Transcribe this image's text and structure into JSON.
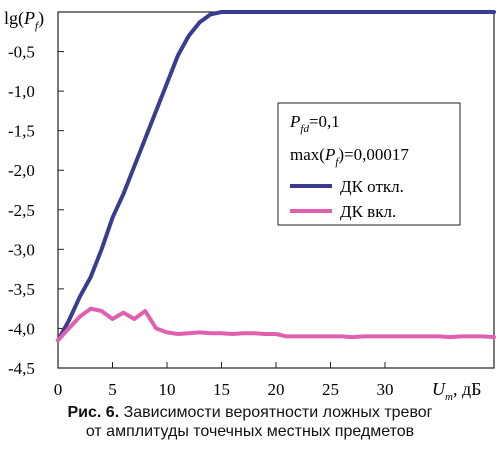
{
  "caption": {
    "label": "Рис. 6.",
    "line1": "Зависимости вероятности ложных тревог",
    "line2": "от амплитуды точечных местных предметов"
  },
  "chart_data": {
    "type": "line",
    "ylabel": {
      "base": "lg(",
      "var": "P",
      "sub": "f",
      "close": ")"
    },
    "xlabel": {
      "var": "U",
      "sub": "m",
      "suffix": ", дБ"
    },
    "xlim": [
      0,
      40
    ],
    "ylim": [
      -4.5,
      0
    ],
    "x_ticks": [
      "0",
      "5",
      "10",
      "15",
      "20",
      "25",
      "30"
    ],
    "y_ticks": [
      "-0,5",
      "-1,0",
      "-1,5",
      "-2,0",
      "-2,5",
      "-3,0",
      "-3,5",
      "-4,0",
      "-4,5"
    ],
    "grid": false,
    "legend": {
      "position": "right",
      "line1": {
        "var": "P",
        "sub": "fd",
        "value": "=0,1"
      },
      "line2": {
        "prefix": "max(",
        "var": "P",
        "sub": "f",
        "value": ")=0,00017"
      }
    },
    "series": [
      {
        "name": "ДК откл.",
        "color": "#3a3d8f",
        "x": [
          0,
          1,
          2,
          3,
          4,
          5,
          6,
          7,
          8,
          9,
          10,
          11,
          12,
          13,
          14,
          15,
          16,
          17,
          18,
          20,
          25,
          30,
          35,
          39,
          40
        ],
        "y": [
          -4.15,
          -3.9,
          -3.6,
          -3.35,
          -3.0,
          -2.6,
          -2.3,
          -1.95,
          -1.6,
          -1.25,
          -0.9,
          -0.55,
          -0.3,
          -0.13,
          -0.03,
          0.0,
          0.0,
          0.0,
          0.0,
          0.0,
          0.0,
          0.0,
          0.0,
          0.0,
          0.0
        ]
      },
      {
        "name": "ДК вкл.",
        "color": "#e060b0",
        "x": [
          0,
          1,
          2,
          3,
          4,
          5,
          6,
          7,
          8,
          9,
          10,
          11,
          12,
          13,
          14,
          15,
          16,
          17,
          18,
          19,
          20,
          21,
          22,
          23,
          24,
          25,
          26,
          27,
          28,
          29,
          30,
          31,
          32,
          33,
          34,
          35,
          36,
          37,
          38,
          39,
          40
        ],
        "y": [
          -4.15,
          -4.0,
          -3.85,
          -3.75,
          -3.78,
          -3.88,
          -3.8,
          -3.88,
          -3.78,
          -4.0,
          -4.05,
          -4.07,
          -4.06,
          -4.05,
          -4.06,
          -4.06,
          -4.07,
          -4.06,
          -4.06,
          -4.07,
          -4.07,
          -4.1,
          -4.1,
          -4.1,
          -4.1,
          -4.1,
          -4.1,
          -4.11,
          -4.1,
          -4.1,
          -4.1,
          -4.1,
          -4.1,
          -4.1,
          -4.1,
          -4.1,
          -4.11,
          -4.1,
          -4.1,
          -4.1,
          -4.11
        ]
      }
    ]
  }
}
